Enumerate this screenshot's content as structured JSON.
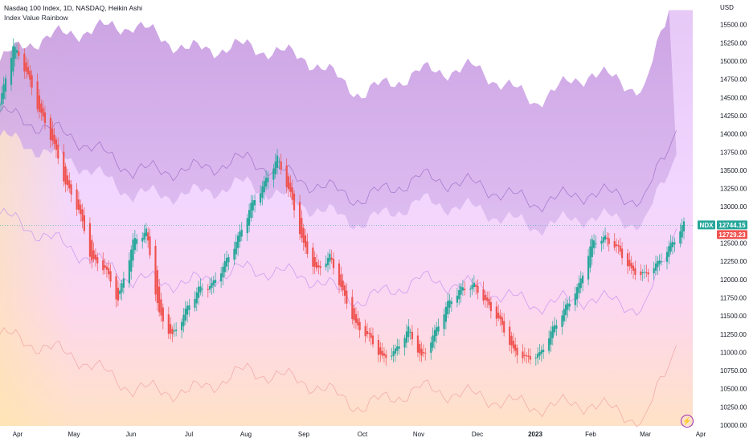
{
  "header": {
    "title": "Nasdaq 100 Index, 1D, NASDAQ, Heikin Ashi",
    "indicator": "Index Value Rainbow"
  },
  "axis": {
    "currency": "USD",
    "y_ticks": [
      "15500.00",
      "15250.00",
      "15000.00",
      "14750.00",
      "14500.00",
      "14250.00",
      "14000.00",
      "13750.00",
      "13500.00",
      "13250.00",
      "13000.00",
      "12750.00",
      "12500.00",
      "12250.00",
      "12000.00",
      "11750.00",
      "11500.00",
      "11250.00",
      "11000.00",
      "10750.00",
      "10500.00",
      "10250.00",
      "10000.00"
    ],
    "x_ticks": [
      "Apr",
      "May",
      "Jun",
      "Jul",
      "Aug",
      "Sep",
      "Oct",
      "Nov",
      "Dec",
      "2023",
      "Feb",
      "Mar",
      "Apr"
    ]
  },
  "badges": {
    "symbol": "NDX",
    "last_price": "12744.15",
    "prev_close": "12729.23",
    "up_color": "#26a69a",
    "down_color": "#ef5350"
  },
  "icons": {
    "logo": "tradingview-lightning-icon"
  },
  "chart_data": {
    "type": "candlestick",
    "title": "Nasdaq 100 Index, 1D, NASDAQ, Heikin Ashi",
    "ylim": [
      10000,
      15750
    ],
    "x_range": [
      "2022-03-22",
      "2023-04-05"
    ],
    "up_color": "#26a69a",
    "down_color": "#ef5350",
    "last_price": 12744.15,
    "candle_points": [
      [
        "2022-03-22",
        14400
      ],
      [
        "2022-03-29",
        15200
      ],
      [
        "2022-04-05",
        14850
      ],
      [
        "2022-04-12",
        14300
      ],
      [
        "2022-04-19",
        13900
      ],
      [
        "2022-04-26",
        13300
      ],
      [
        "2022-05-03",
        12950
      ],
      [
        "2022-05-10",
        12250
      ],
      [
        "2022-05-17",
        12150
      ],
      [
        "2022-05-24",
        11700
      ],
      [
        "2022-06-01",
        12500
      ],
      [
        "2022-06-08",
        12650
      ],
      [
        "2022-06-15",
        11500
      ],
      [
        "2022-06-22",
        11200
      ],
      [
        "2022-06-29",
        11550
      ],
      [
        "2022-07-06",
        11850
      ],
      [
        "2022-07-13",
        11900
      ],
      [
        "2022-07-20",
        12200
      ],
      [
        "2022-07-27",
        12550
      ],
      [
        "2022-08-03",
        13000
      ],
      [
        "2022-08-10",
        13300
      ],
      [
        "2022-08-17",
        13650
      ],
      [
        "2022-08-24",
        13150
      ],
      [
        "2022-08-31",
        12450
      ],
      [
        "2022-09-07",
        12100
      ],
      [
        "2022-09-14",
        12300
      ],
      [
        "2022-09-21",
        11800
      ],
      [
        "2022-09-28",
        11350
      ],
      [
        "2022-10-05",
        11200
      ],
      [
        "2022-10-12",
        10900
      ],
      [
        "2022-10-19",
        11000
      ],
      [
        "2022-10-26",
        11300
      ],
      [
        "2022-11-02",
        10900
      ],
      [
        "2022-11-09",
        11250
      ],
      [
        "2022-11-16",
        11650
      ],
      [
        "2022-11-23",
        11850
      ],
      [
        "2022-11-30",
        11900
      ],
      [
        "2022-12-07",
        11650
      ],
      [
        "2022-12-14",
        11400
      ],
      [
        "2022-12-21",
        11000
      ],
      [
        "2022-12-28",
        10900
      ],
      [
        "2023-01-04",
        10950
      ],
      [
        "2023-01-11",
        11300
      ],
      [
        "2023-01-18",
        11600
      ],
      [
        "2023-01-25",
        11900
      ],
      [
        "2023-02-01",
        12500
      ],
      [
        "2023-02-08",
        12550
      ],
      [
        "2023-02-15",
        12400
      ],
      [
        "2023-02-22",
        12100
      ],
      [
        "2023-03-01",
        12050
      ],
      [
        "2023-03-08",
        12200
      ],
      [
        "2023-03-15",
        12450
      ],
      [
        "2023-03-22",
        12744
      ]
    ],
    "bands": {
      "upper_fill_top": [
        [
          "2022-03-22",
          15000
        ],
        [
          "2022-04-05",
          15250
        ],
        [
          "2022-05-01",
          15400
        ],
        [
          "2022-06-01",
          15500
        ],
        [
          "2022-07-01",
          15150
        ],
        [
          "2022-08-01",
          15200
        ],
        [
          "2022-09-01",
          15050
        ],
        [
          "2022-10-01",
          14550
        ],
        [
          "2022-11-01",
          14850
        ],
        [
          "2022-12-01",
          14900
        ],
        [
          "2023-01-01",
          14450
        ],
        [
          "2023-02-01",
          14850
        ],
        [
          "2023-03-01",
          14600
        ],
        [
          "2023-03-14",
          15700
        ]
      ],
      "upper_line": [
        [
          "2022-03-22",
          14300
        ],
        [
          "2022-05-01",
          13950
        ],
        [
          "2022-06-01",
          13500
        ],
        [
          "2022-07-01",
          13500
        ],
        [
          "2022-08-01",
          13650
        ],
        [
          "2022-09-01",
          13350
        ],
        [
          "2022-10-01",
          13100
        ],
        [
          "2022-11-01",
          13400
        ],
        [
          "2022-12-01",
          13300
        ],
        [
          "2023-01-01",
          13050
        ],
        [
          "2023-02-01",
          13200
        ],
        [
          "2023-03-01",
          13100
        ],
        [
          "2023-03-18",
          14050
        ]
      ],
      "middle_line": [
        [
          "2022-03-22",
          12900
        ],
        [
          "2022-05-01",
          12400
        ],
        [
          "2022-06-01",
          12000
        ],
        [
          "2022-07-01",
          11950
        ],
        [
          "2022-08-01",
          12150
        ],
        [
          "2022-09-01",
          12050
        ],
        [
          "2022-10-01",
          11700
        ],
        [
          "2022-11-01",
          12000
        ],
        [
          "2022-12-01",
          11900
        ],
        [
          "2023-01-01",
          11650
        ],
        [
          "2023-02-01",
          11750
        ],
        [
          "2023-03-01",
          11600
        ],
        [
          "2023-03-18",
          12700
        ]
      ],
      "lower_line": [
        [
          "2022-03-22",
          11250
        ],
        [
          "2022-05-01",
          10950
        ],
        [
          "2022-06-01",
          10500
        ],
        [
          "2022-07-01",
          10450
        ],
        [
          "2022-08-01",
          10750
        ],
        [
          "2022-09-01",
          10600
        ],
        [
          "2022-10-01",
          10250
        ],
        [
          "2022-11-01",
          10500
        ],
        [
          "2022-12-01",
          10400
        ],
        [
          "2023-01-01",
          10250
        ],
        [
          "2023-02-01",
          10300
        ],
        [
          "2023-03-01",
          10050
        ],
        [
          "2023-03-18",
          11100
        ]
      ]
    }
  }
}
